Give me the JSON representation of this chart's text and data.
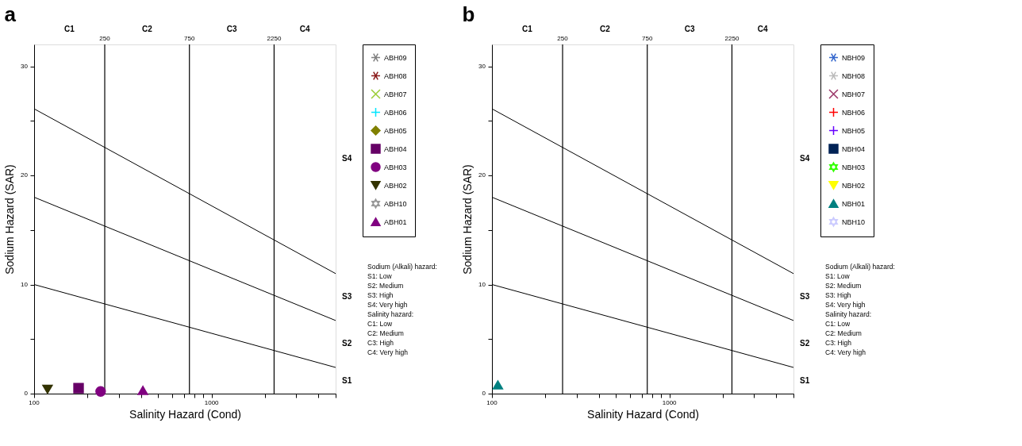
{
  "chart_data": [
    {
      "type": "scatter",
      "title": "a",
      "xlabel": "Salinity Hazard (Cond)",
      "ylabel": "Sodium Hazard (SAR)",
      "log": "x",
      "grid": false,
      "legend": "right",
      "xlim": [
        100,
        5000
      ],
      "xticks": [
        100,
        {
          "value": 200,
          "label": null
        },
        {
          "value": 300,
          "label": null
        },
        {
          "value": 400,
          "label": null
        },
        {
          "value": 500,
          "label": null
        },
        {
          "value": 600,
          "label": null
        },
        {
          "value": 700,
          "label": null
        },
        {
          "value": 800,
          "label": null
        },
        {
          "value": 900,
          "label": null
        },
        1000,
        {
          "value": 2000,
          "label": null
        },
        {
          "value": 3000,
          "label": null
        },
        {
          "value": 4000,
          "label": null
        },
        {
          "value": 5000,
          "label": null
        }
      ],
      "ylim": [
        0,
        32
      ],
      "yticks": [
        0,
        {
          "value": 5,
          "label": null
        },
        10,
        {
          "value": 15,
          "label": null
        },
        20,
        {
          "value": 25,
          "label": null
        },
        30
      ],
      "ref_lines": [
        {
          "axis": "x",
          "value": 250,
          "label": "250",
          "color": "#000000"
        },
        {
          "axis": "x",
          "value": 750,
          "label": "750",
          "color": "#000000"
        },
        {
          "axis": "x",
          "value": 2250,
          "label": "2250",
          "color": "#000000"
        }
      ],
      "series": [
        {
          "name": "ABH09",
          "color": "#808080",
          "marker": "asterisk"
        },
        {
          "name": "ABH08",
          "color": "#8b1a1a",
          "marker": "asterisk"
        },
        {
          "name": "ABH07",
          "color": "#99cc33",
          "marker": "cross"
        },
        {
          "name": "ABH06",
          "color": "#00e5ff",
          "marker": "plus"
        },
        {
          "name": "ABH05",
          "color": "#808000",
          "marker": "diamond"
        },
        {
          "name": "ABH04",
          "color": "#660066",
          "marker": "square",
          "x": [
            178
          ],
          "values": [
            0.5
          ]
        },
        {
          "name": "ABH03",
          "color": "#800080",
          "marker": "circle",
          "x": [
            237
          ],
          "values": [
            0.2
          ]
        },
        {
          "name": "ABH02",
          "color": "#333300",
          "marker": "triangle-down",
          "x": [
            119
          ],
          "values": [
            0.4
          ]
        },
        {
          "name": "ABH10",
          "color": "#999999",
          "marker": "star"
        },
        {
          "name": "ABH01",
          "color": "#800080",
          "marker": "triangle",
          "x": [
            410
          ],
          "values": [
            0.3
          ]
        },
        {
          "type": "line",
          "color": "#000000",
          "line_style": "solid",
          "x": [
            100,
            5000
          ],
          "values": [
            10.0,
            2.4
          ]
        },
        {
          "type": "line",
          "color": "#000000",
          "line_style": "solid",
          "x": [
            100,
            5000
          ],
          "values": [
            18.0,
            6.7
          ]
        },
        {
          "type": "line",
          "color": "#000000",
          "line_style": "solid",
          "x": [
            100,
            5000
          ],
          "values": [
            26.1,
            11.0
          ]
        }
      ],
      "annotations": [
        "C1",
        "C2",
        "C3",
        "C4",
        "S1",
        "S2",
        "S3",
        "S4",
        "Sodium (Alkali) hazard:",
        "S1: Low",
        "S2: Medium",
        "S3: High",
        "S4: Very high",
        "Salinity hazard:",
        "C1: Low",
        "C2: Medium",
        "C3: High",
        "C4: Very high"
      ]
    },
    {
      "type": "scatter",
      "title": "b",
      "xlabel": "Salinity Hazard (Cond)",
      "ylabel": "Sodium Hazard (SAR)",
      "log": "x",
      "grid": false,
      "legend": "right",
      "xlim": [
        100,
        5000
      ],
      "xticks": [
        100,
        {
          "value": 200,
          "label": null
        },
        {
          "value": 300,
          "label": null
        },
        {
          "value": 400,
          "label": null
        },
        {
          "value": 500,
          "label": null
        },
        {
          "value": 600,
          "label": null
        },
        {
          "value": 700,
          "label": null
        },
        {
          "value": 800,
          "label": null
        },
        {
          "value": 900,
          "label": null
        },
        1000,
        {
          "value": 2000,
          "label": null
        },
        {
          "value": 3000,
          "label": null
        },
        {
          "value": 4000,
          "label": null
        },
        {
          "value": 5000,
          "label": null
        }
      ],
      "ylim": [
        0,
        32
      ],
      "yticks": [
        0,
        {
          "value": 5,
          "label": null
        },
        10,
        {
          "value": 15,
          "label": null
        },
        20,
        {
          "value": 25,
          "label": null
        },
        30
      ],
      "ref_lines": [
        {
          "axis": "x",
          "value": 250,
          "label": "250",
          "color": "#000000"
        },
        {
          "axis": "x",
          "value": 750,
          "label": "750",
          "color": "#000000"
        },
        {
          "axis": "x",
          "value": 2250,
          "label": "2250",
          "color": "#000000"
        }
      ],
      "series": [
        {
          "name": "NBH09",
          "color": "#3366cc",
          "marker": "asterisk"
        },
        {
          "name": "NBH08",
          "color": "#bbbbbb",
          "marker": "asterisk"
        },
        {
          "name": "NBH07",
          "color": "#993366",
          "marker": "cross"
        },
        {
          "name": "NBH06",
          "color": "#ff0000",
          "marker": "plus"
        },
        {
          "name": "NBH05",
          "color": "#6600ff",
          "marker": "plus"
        },
        {
          "name": "NBH04",
          "color": "#002255",
          "marker": "square"
        },
        {
          "name": "NBH03",
          "color": "#33ff00",
          "marker": "star"
        },
        {
          "name": "NBH02",
          "color": "#ffff00",
          "marker": "triangle-down"
        },
        {
          "name": "NBH01",
          "color": "#008080",
          "marker": "triangle",
          "x": [
            108
          ],
          "values": [
            0.8
          ]
        },
        {
          "name": "NBH10",
          "color": "#ccccff",
          "marker": "star"
        },
        {
          "type": "line",
          "color": "#000000",
          "line_style": "solid",
          "x": [
            100,
            5000
          ],
          "values": [
            10.0,
            2.4
          ]
        },
        {
          "type": "line",
          "color": "#000000",
          "line_style": "solid",
          "x": [
            100,
            5000
          ],
          "values": [
            18.0,
            6.7
          ]
        },
        {
          "type": "line",
          "color": "#000000",
          "line_style": "solid",
          "x": [
            100,
            5000
          ],
          "values": [
            26.1,
            11.0
          ]
        }
      ],
      "annotations": [
        "C1",
        "C2",
        "C3",
        "C4",
        "S1",
        "S2",
        "S3",
        "S4",
        "Sodium (Alkali) hazard:",
        "S1: Low",
        "S2: Medium",
        "S3: High",
        "S4: Very high",
        "Salinity hazard:",
        "C1: Low",
        "C2: Medium",
        "C3: High",
        "C4: Very high"
      ]
    }
  ]
}
